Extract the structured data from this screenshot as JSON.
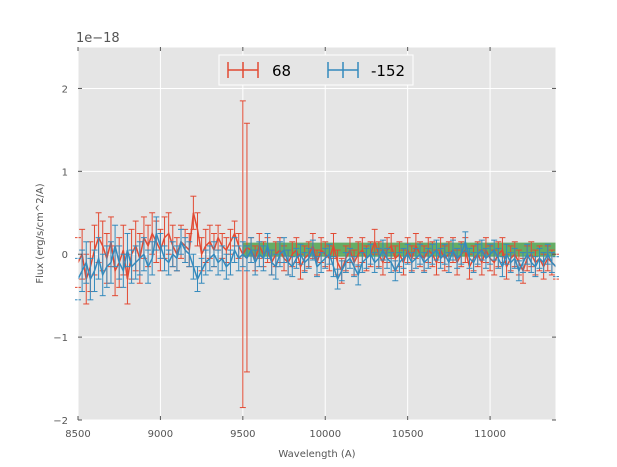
{
  "chart_data": {
    "type": "line",
    "title": "",
    "xlabel": "Wavelength (A)",
    "ylabel": "Flux (erg/s/cm^2/A)",
    "y_offset_label": "1e−18",
    "xlim": [
      8500,
      11400
    ],
    "ylim": [
      -2.0,
      2.5
    ],
    "x_ticks": [
      8500,
      9000,
      9500,
      10000,
      10500,
      11000
    ],
    "y_ticks": [
      -2,
      -1,
      0,
      1,
      2
    ],
    "y_tick_labels": [
      "−2",
      "−1",
      "0",
      "1",
      "2"
    ],
    "grid": true,
    "legend_position": "top-center",
    "shaded_band": {
      "x": [
        9500,
        11400
      ],
      "y": [
        -0.03,
        0.14
      ],
      "color": "#3a9a3a"
    },
    "colors": {
      "series_68": "#e24a33",
      "series_152": "#348abd",
      "background": "#e5e5e5",
      "grid": "#ffffff"
    },
    "series": [
      {
        "name": "68",
        "color": "#e24a33",
        "x": [
          8500,
          8525,
          8550,
          8575,
          8600,
          8625,
          8650,
          8675,
          8700,
          8725,
          8750,
          8775,
          8800,
          8825,
          8850,
          8875,
          8900,
          8925,
          8950,
          8975,
          9000,
          9025,
          9050,
          9075,
          9100,
          9125,
          9150,
          9175,
          9200,
          9225,
          9250,
          9275,
          9300,
          9325,
          9350,
          9375,
          9400,
          9425,
          9450,
          9475,
          9500,
          9525,
          9550,
          9575,
          9600,
          9625,
          9650,
          9675,
          9700,
          9725,
          9750,
          9775,
          9800,
          9825,
          9850,
          9875,
          9900,
          9925,
          9950,
          9975,
          10000,
          10025,
          10050,
          10075,
          10100,
          10125,
          10150,
          10175,
          10200,
          10225,
          10250,
          10275,
          10300,
          10325,
          10350,
          10375,
          10400,
          10425,
          10450,
          10475,
          10500,
          10525,
          10550,
          10575,
          10600,
          10625,
          10650,
          10675,
          10700,
          10725,
          10750,
          10775,
          10800,
          10825,
          10850,
          10875,
          10900,
          10925,
          10950,
          10975,
          11000,
          11025,
          11050,
          11075,
          11100,
          11125,
          11150,
          11175,
          11200,
          11225,
          11250,
          11275,
          11300,
          11325,
          11350,
          11375,
          11400
        ],
        "y": [
          -0.1,
          0.0,
          -0.3,
          -0.15,
          0.05,
          0.2,
          0.1,
          -0.05,
          0.15,
          -0.2,
          -0.1,
          0.05,
          -0.3,
          0.0,
          0.1,
          -0.05,
          0.2,
          0.1,
          0.25,
          0.15,
          0.05,
          0.2,
          0.25,
          0.1,
          0.0,
          0.15,
          0.1,
          0.05,
          0.5,
          0.3,
          0.0,
          0.1,
          0.15,
          0.05,
          0.2,
          0.1,
          0.05,
          0.15,
          0.25,
          0.1,
          0.0,
          0.08,
          0.05,
          -0.05,
          0.1,
          0.0,
          0.05,
          -0.1,
          0.0,
          0.05,
          -0.05,
          -0.1,
          0.0,
          0.05,
          -0.15,
          -0.05,
          0.0,
          0.1,
          -0.1,
          0.05,
          0.0,
          -0.05,
          0.1,
          -0.1,
          -0.2,
          -0.05,
          0.05,
          -0.1,
          0.0,
          0.05,
          -0.05,
          0.0,
          0.15,
          0.0,
          -0.1,
          0.05,
          0.1,
          -0.05,
          0.0,
          -0.1,
          0.05,
          -0.05,
          0.1,
          0.0,
          -0.05,
          0.05,
          0.0,
          -0.1,
          0.05,
          -0.05,
          0.0,
          0.05,
          -0.1,
          0.0,
          0.05,
          -0.15,
          -0.05,
          0.0,
          -0.1,
          0.05,
          -0.05,
          -0.1,
          0.0,
          0.05,
          -0.15,
          -0.05,
          0.0,
          -0.1,
          -0.2,
          -0.05,
          0.0,
          -0.1,
          -0.05,
          -0.15,
          -0.05,
          -0.1,
          -0.15
        ],
        "err": [
          0.3,
          0.3,
          0.3,
          0.3,
          0.3,
          0.3,
          0.3,
          0.3,
          0.3,
          0.3,
          0.3,
          0.3,
          0.3,
          0.3,
          0.3,
          0.3,
          0.25,
          0.25,
          0.25,
          0.25,
          0.25,
          0.25,
          0.25,
          0.25,
          0.2,
          0.2,
          0.2,
          0.2,
          0.2,
          0.2,
          0.2,
          0.2,
          0.2,
          0.2,
          0.15,
          0.15,
          0.15,
          0.15,
          0.15,
          0.15,
          1.85,
          1.5,
          0.15,
          0.15,
          0.15,
          0.15,
          0.15,
          0.15,
          0.15,
          0.15,
          0.15,
          0.15,
          0.15,
          0.15,
          0.15,
          0.15,
          0.15,
          0.15,
          0.15,
          0.15,
          0.15,
          0.15,
          0.15,
          0.15,
          0.15,
          0.15,
          0.15,
          0.15,
          0.15,
          0.15,
          0.15,
          0.15,
          0.15,
          0.15,
          0.15,
          0.15,
          0.15,
          0.15,
          0.15,
          0.15,
          0.15,
          0.15,
          0.15,
          0.15,
          0.15,
          0.15,
          0.15,
          0.15,
          0.15,
          0.15,
          0.15,
          0.15,
          0.15,
          0.15,
          0.15,
          0.15,
          0.15,
          0.15,
          0.15,
          0.15,
          0.15,
          0.15,
          0.15,
          0.15,
          0.15,
          0.15,
          0.15,
          0.15,
          0.15,
          0.15,
          0.15,
          0.15,
          0.15,
          0.15,
          0.15,
          0.15,
          0.15
        ]
      },
      {
        "name": "-152",
        "color": "#348abd",
        "x": [
          8500,
          8525,
          8550,
          8575,
          8600,
          8625,
          8650,
          8675,
          8700,
          8725,
          8750,
          8775,
          8800,
          8825,
          8850,
          8875,
          8900,
          8925,
          8950,
          8975,
          9000,
          9025,
          9050,
          9075,
          9100,
          9125,
          9150,
          9175,
          9200,
          9225,
          9250,
          9275,
          9300,
          9325,
          9350,
          9375,
          9400,
          9425,
          9450,
          9475,
          9500,
          9525,
          9550,
          9575,
          9600,
          9625,
          9650,
          9675,
          9700,
          9725,
          9750,
          9775,
          9800,
          9825,
          9850,
          9875,
          9900,
          9925,
          9950,
          9975,
          10000,
          10025,
          10050,
          10075,
          10100,
          10125,
          10150,
          10175,
          10200,
          10225,
          10250,
          10275,
          10300,
          10325,
          10350,
          10375,
          10400,
          10425,
          10450,
          10475,
          10500,
          10525,
          10550,
          10575,
          10600,
          10625,
          10650,
          10675,
          10700,
          10725,
          10750,
          10775,
          10800,
          10825,
          10850,
          10875,
          10900,
          10925,
          10950,
          10975,
          11000,
          11025,
          11050,
          11075,
          11100,
          11125,
          11150,
          11175,
          11200,
          11225,
          11250,
          11275,
          11300,
          11325,
          11350,
          11375,
          11400
        ],
        "y": [
          -0.3,
          -0.2,
          -0.1,
          -0.3,
          -0.2,
          -0.05,
          -0.25,
          -0.15,
          -0.1,
          0.1,
          -0.1,
          -0.2,
          0.05,
          -0.15,
          -0.1,
          -0.05,
          0.0,
          -0.15,
          -0.05,
          0.25,
          0.1,
          -0.05,
          -0.1,
          0.0,
          -0.05,
          0.15,
          0.05,
          0.0,
          -0.15,
          -0.3,
          -0.2,
          -0.1,
          -0.05,
          0.0,
          -0.1,
          -0.05,
          -0.15,
          -0.1,
          0.05,
          -0.05,
          0.0,
          -0.05,
          0.05,
          -0.1,
          0.0,
          -0.05,
          0.1,
          -0.1,
          -0.15,
          0.0,
          0.05,
          -0.1,
          -0.15,
          -0.05,
          0.0,
          -0.1,
          -0.05,
          0.05,
          -0.15,
          -0.1,
          -0.05,
          0.0,
          -0.15,
          -0.3,
          -0.2,
          -0.1,
          -0.05,
          -0.15,
          -0.25,
          -0.1,
          -0.05,
          0.0,
          -0.1,
          -0.05,
          0.05,
          -0.05,
          -0.1,
          -0.2,
          -0.1,
          -0.05,
          0.0,
          -0.1,
          -0.05,
          0.0,
          -0.1,
          -0.05,
          0.0,
          0.05,
          -0.05,
          0.0,
          -0.1,
          0.05,
          -0.05,
          0.0,
          0.15,
          -0.05,
          -0.1,
          0.0,
          0.05,
          -0.05,
          0.0,
          0.05,
          -0.05,
          -0.15,
          0.0,
          -0.1,
          -0.05,
          -0.2,
          -0.1,
          0.0,
          -0.1,
          -0.15,
          -0.05,
          -0.1,
          0.0,
          -0.1,
          -0.15
        ],
        "err": [
          0.25,
          0.25,
          0.25,
          0.25,
          0.25,
          0.25,
          0.25,
          0.25,
          0.25,
          0.25,
          0.2,
          0.2,
          0.2,
          0.2,
          0.2,
          0.2,
          0.2,
          0.2,
          0.2,
          0.2,
          0.15,
          0.15,
          0.15,
          0.15,
          0.15,
          0.15,
          0.15,
          0.15,
          0.15,
          0.15,
          0.15,
          0.15,
          0.15,
          0.15,
          0.15,
          0.15,
          0.15,
          0.15,
          0.15,
          0.15,
          0.15,
          0.15,
          0.15,
          0.15,
          0.15,
          0.15,
          0.15,
          0.15,
          0.15,
          0.15,
          0.15,
          0.15,
          0.12,
          0.12,
          0.12,
          0.12,
          0.12,
          0.12,
          0.12,
          0.12,
          0.12,
          0.12,
          0.12,
          0.12,
          0.12,
          0.12,
          0.12,
          0.12,
          0.12,
          0.12,
          0.12,
          0.12,
          0.12,
          0.12,
          0.12,
          0.12,
          0.12,
          0.12,
          0.12,
          0.12,
          0.12,
          0.12,
          0.12,
          0.12,
          0.12,
          0.12,
          0.12,
          0.12,
          0.12,
          0.12,
          0.12,
          0.12,
          0.12,
          0.12,
          0.12,
          0.12,
          0.12,
          0.12,
          0.12,
          0.12,
          0.12,
          0.12,
          0.12,
          0.12,
          0.12,
          0.12,
          0.12,
          0.12,
          0.12,
          0.12,
          0.12,
          0.12,
          0.12,
          0.12,
          0.12,
          0.12,
          0.12
        ]
      }
    ]
  }
}
